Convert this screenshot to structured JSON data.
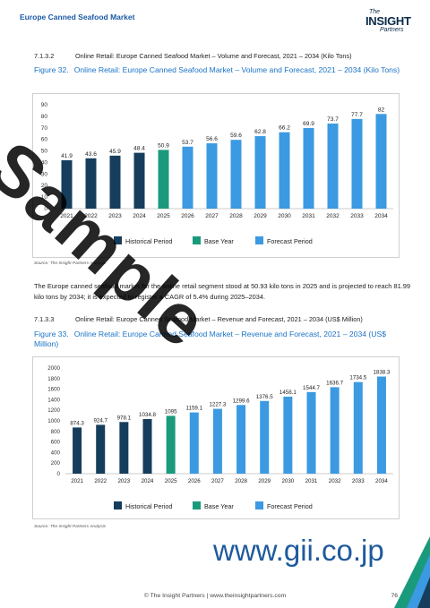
{
  "header": {
    "title": "Europe Canned Seafood Market"
  },
  "logo": {
    "the": "The",
    "insight": "INSIGHT",
    "partners": "Partners"
  },
  "section1": {
    "number": "7.1.3.2",
    "title": "Online Retail: Europe Canned Seafood Market – Volume and Forecast, 2021 – 2034 (Kilo Tons)"
  },
  "figure32": {
    "number": "Figure 32.",
    "title": "Online Retail: Europe Canned Seafood Market – Volume and Forecast, 2021 – 2034 (Kilo Tons)"
  },
  "chart_data": [
    {
      "type": "bar",
      "title": "Online Retail: Europe Canned Seafood Market – Volume and Forecast, 2021 – 2034 (Kilo Tons)",
      "categories": [
        "2021",
        "2022",
        "2023",
        "2024",
        "2025",
        "2026",
        "2027",
        "2028",
        "2029",
        "2030",
        "2031",
        "2032",
        "2033",
        "2034"
      ],
      "values": [
        41.9,
        43.6,
        45.9,
        48.4,
        50.9,
        53.7,
        56.6,
        59.6,
        62.8,
        66.2,
        69.9,
        73.7,
        77.7,
        82
      ],
      "value_labels": [
        "41.9",
        "43.6",
        "45.9",
        "48.4",
        "50.9",
        "53.7",
        "56.6",
        "59.6",
        "62.8",
        "66.2",
        "69.9",
        "73.7",
        "77.7",
        "82"
      ],
      "period_index": [
        0,
        0,
        0,
        0,
        1,
        2,
        2,
        2,
        2,
        2,
        2,
        2,
        2,
        2
      ],
      "ylim": [
        0,
        90
      ],
      "yticks": [
        0,
        10,
        20,
        30,
        40,
        50,
        60,
        70,
        80,
        90
      ],
      "ytick_labels": [
        "0",
        "10",
        "20",
        "30",
        "40",
        "50",
        "60",
        "70",
        "80",
        "90"
      ],
      "grid": false,
      "legend": [
        "Historical Period",
        "Base Year",
        "Forecast Period"
      ],
      "legend_position": "bottom"
    },
    {
      "type": "bar",
      "title": "Online Retail: Europe Canned Seafood Market – Revenue and Forecast, 2021 – 2034 (US$ Million)",
      "categories": [
        "2021",
        "2022",
        "2023",
        "2024",
        "2025",
        "2026",
        "2027",
        "2028",
        "2029",
        "2030",
        "2031",
        "2032",
        "2033",
        "2034"
      ],
      "values": [
        874.3,
        924.7,
        978.1,
        1034.8,
        1095,
        1159.1,
        1227.3,
        1299.6,
        1376.5,
        1458.1,
        1544.7,
        1636.7,
        1734.5,
        1838.3
      ],
      "value_labels": [
        "874.3",
        "924.7",
        "978.1",
        "1034.8",
        "1095",
        "1159.1",
        "1227.3",
        "1299.6",
        "1376.5",
        "1458.1",
        "1544.7",
        "1636.7",
        "1734.5",
        "1838.3"
      ],
      "period_index": [
        0,
        0,
        0,
        0,
        1,
        2,
        2,
        2,
        2,
        2,
        2,
        2,
        2,
        2
      ],
      "ylim": [
        0,
        2000
      ],
      "yticks": [
        0,
        200,
        400,
        600,
        800,
        1000,
        1200,
        1400,
        1600,
        1800,
        2000
      ],
      "ytick_labels": [
        "0",
        "200",
        "400",
        "600",
        "800",
        "1000",
        "1200",
        "1400",
        "1600",
        "1800",
        "2000"
      ],
      "grid": false,
      "legend": [
        "Historical Period",
        "Base Year",
        "Forecast Period"
      ],
      "legend_position": "bottom"
    }
  ],
  "colors": {
    "historical": "#163e5c",
    "base": "#1a9a7c",
    "forecast": "#3b9ae1"
  },
  "source1": "Source: The Insight Partners Analysis",
  "paragraph": "The Europe canned seafood market for the online retail segment stood at 50.93 kilo tons in 2025 and is projected to reach 81.99 kilo tons by 2034; it is expected to register a CAGR of 5.4% during 2025–2034.",
  "section2": {
    "number": "7.1.3.3",
    "title": "Online Retail: Europe Canned Seafood Market – Revenue and Forecast, 2021 – 2034 (US$ Million)"
  },
  "figure33": {
    "number": "Figure 33.",
    "title": "Online Retail: Europe Canned Seafood Market – Revenue and Forecast, 2021 – 2034 (US$ Million)"
  },
  "source2": "Source: The Insight Partners Analysis",
  "watermark": "Sample",
  "gii": "www.gii.co.jp",
  "footer": "© The Insight Partners     |     www.theinsightpartners.com",
  "page_number": "76"
}
